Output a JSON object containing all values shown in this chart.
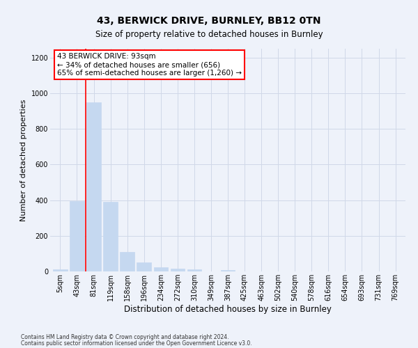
{
  "title1": "43, BERWICK DRIVE, BURNLEY, BB12 0TN",
  "title2": "Size of property relative to detached houses in Burnley",
  "xlabel": "Distribution of detached houses by size in Burnley",
  "ylabel": "Number of detached properties",
  "footnote1": "Contains HM Land Registry data © Crown copyright and database right 2024.",
  "footnote2": "Contains public sector information licensed under the Open Government Licence v3.0.",
  "annotation_line1": "43 BERWICK DRIVE: 93sqm",
  "annotation_line2": "← 34% of detached houses are smaller (656)",
  "annotation_line3": "65% of semi-detached houses are larger (1,260) →",
  "bar_labels": [
    "5sqm",
    "43sqm",
    "81sqm",
    "119sqm",
    "158sqm",
    "196sqm",
    "234sqm",
    "272sqm",
    "310sqm",
    "349sqm",
    "387sqm",
    "425sqm",
    "463sqm",
    "502sqm",
    "540sqm",
    "578sqm",
    "616sqm",
    "654sqm",
    "693sqm",
    "731sqm",
    "769sqm"
  ],
  "bar_values": [
    12,
    395,
    950,
    390,
    110,
    52,
    25,
    15,
    12,
    0,
    8,
    0,
    0,
    0,
    0,
    0,
    0,
    0,
    0,
    0,
    0
  ],
  "bar_color": "#c5d8f0",
  "bar_edge_color": "#c5d8f0",
  "grid_color": "#d0d8e8",
  "bg_color": "#eef2fa",
  "property_line_color": "red",
  "ylim": [
    0,
    1250
  ],
  "yticks": [
    0,
    200,
    400,
    600,
    800,
    1000,
    1200
  ],
  "annotation_box_color": "white",
  "annotation_box_edge": "red",
  "title1_fontsize": 10,
  "title2_fontsize": 8.5,
  "ylabel_fontsize": 8,
  "xlabel_fontsize": 8.5,
  "tick_fontsize": 7,
  "annot_fontsize": 7.5,
  "footnote_fontsize": 5.5
}
